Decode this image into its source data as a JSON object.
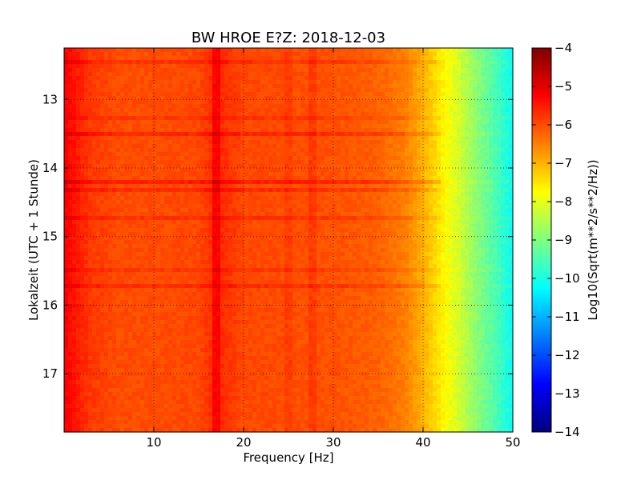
{
  "chart_data": {
    "type": "heatmap",
    "title": "BW HROE E?Z: 2018-12-03",
    "xlabel": "Frequency [Hz]",
    "ylabel": "Lokalzeit (UTC + 1 Stunde)",
    "xlim": [
      0,
      50
    ],
    "ylim": [
      12.25,
      17.85
    ],
    "x_ticks": [
      10,
      20,
      30,
      40,
      50
    ],
    "y_ticks": [
      13,
      14,
      15,
      16,
      17
    ],
    "grid": true,
    "colorbar": {
      "label": "Log10(Sqrt(m**2/s**2/Hz))",
      "range": [
        -14,
        -4
      ],
      "ticks": [
        -4,
        -5,
        -6,
        -7,
        -8,
        -9,
        -10,
        -11,
        -12,
        -13,
        -14
      ],
      "colormap": "jet"
    },
    "spectrum_profile": {
      "description_free": true,
      "freq_hz": [
        0,
        1,
        3,
        6,
        10,
        15,
        17,
        20,
        25,
        30,
        35,
        38,
        40,
        42,
        44,
        46,
        48,
        50
      ],
      "level": [
        -5.2,
        -5.4,
        -5.8,
        -6.0,
        -6.0,
        -5.95,
        -5.6,
        -5.95,
        -6.0,
        -6.05,
        -6.2,
        -6.5,
        -7.0,
        -7.6,
        -8.2,
        -8.9,
        -9.5,
        -10.2
      ]
    },
    "stripes": [
      {
        "time": 12.45,
        "level_shift": 0.25
      },
      {
        "time": 13.25,
        "level_shift": 0.2
      },
      {
        "time": 13.5,
        "level_shift": 0.35
      },
      {
        "time": 14.2,
        "level_shift": 0.45
      },
      {
        "time": 14.3,
        "level_shift": 0.3
      },
      {
        "time": 14.75,
        "level_shift": 0.25
      },
      {
        "time": 15.5,
        "level_shift": 0.2
      },
      {
        "time": 15.7,
        "level_shift": 0.3
      }
    ],
    "vertical_lines": [
      {
        "freq_hz": 17,
        "level_shift": 0.4
      },
      {
        "freq_hz": 25,
        "level_shift": 0.15
      },
      {
        "freq_hz": 27.5,
        "level_shift": 0.2
      }
    ]
  }
}
